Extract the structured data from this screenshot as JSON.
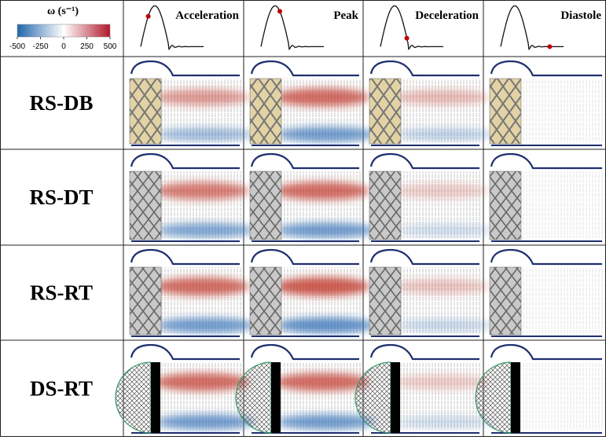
{
  "colorbar": {
    "title": "ω (s⁻¹)",
    "lim": [
      -500,
      500
    ],
    "ticks": [
      -500,
      -250,
      0,
      250,
      500
    ],
    "colors": [
      "#2166ac",
      "#ffffff",
      "#b2182b"
    ]
  },
  "columns": [
    "Acceleration",
    "Peak",
    "Deceleration",
    "Diastole"
  ],
  "rows": [
    "RS-DB",
    "RS-DT",
    "RS-RT",
    "DS-RT"
  ]
}
